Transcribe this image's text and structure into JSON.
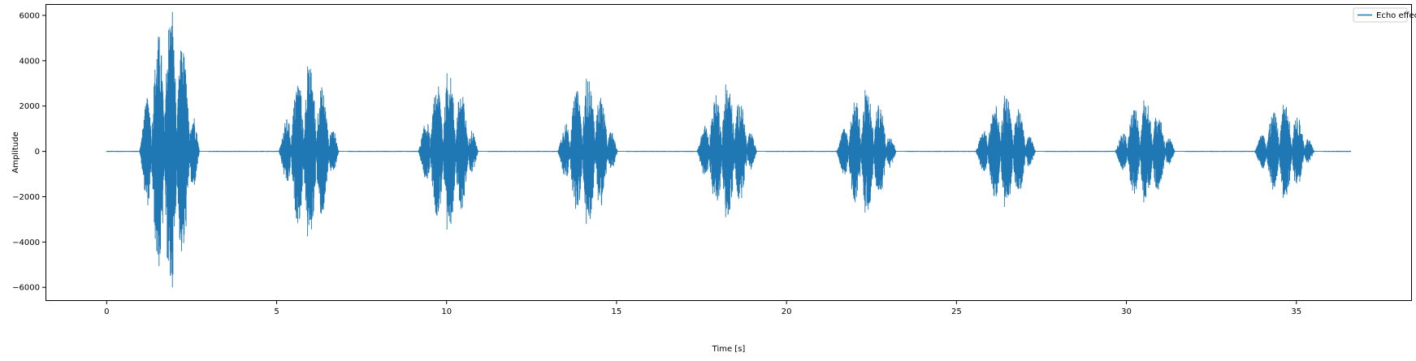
{
  "chart_data": {
    "type": "line",
    "xlabel": "Time [s]",
    "ylabel": "Amplitude",
    "xlim": [
      -1.8,
      38.4
    ],
    "ylim": [
      -6600,
      6500
    ],
    "xticks": [
      0,
      5,
      10,
      15,
      20,
      25,
      30,
      35
    ],
    "yticks": [
      -6000,
      -4000,
      -2000,
      0,
      2000,
      4000,
      6000
    ],
    "grid": false,
    "legend_position": "top-right",
    "series": [
      {
        "name": "Echo effect",
        "color": "#1f77b4",
        "x_range": [
          0,
          36.6
        ],
        "bursts": [
          {
            "start": 0.95,
            "end": 3.0,
            "peak_max": 6150,
            "peak_min": -6000
          },
          {
            "start": 5.05,
            "end": 7.1,
            "peak_max": 3750,
            "peak_min": -3750
          },
          {
            "start": 9.15,
            "end": 11.2,
            "peak_max": 3450,
            "peak_min": -3450
          },
          {
            "start": 13.25,
            "end": 15.3,
            "peak_max": 3200,
            "peak_min": -3200
          },
          {
            "start": 17.35,
            "end": 19.4,
            "peak_max": 2950,
            "peak_min": -2900
          },
          {
            "start": 21.45,
            "end": 23.5,
            "peak_max": 2700,
            "peak_min": -2700
          },
          {
            "start": 25.55,
            "end": 27.6,
            "peak_max": 2450,
            "peak_min": -2450
          },
          {
            "start": 29.65,
            "end": 31.7,
            "peak_max": 2250,
            "peak_min": -2250
          },
          {
            "start": 33.75,
            "end": 35.8,
            "peak_max": 2050,
            "peak_min": -2050
          }
        ]
      }
    ]
  }
}
